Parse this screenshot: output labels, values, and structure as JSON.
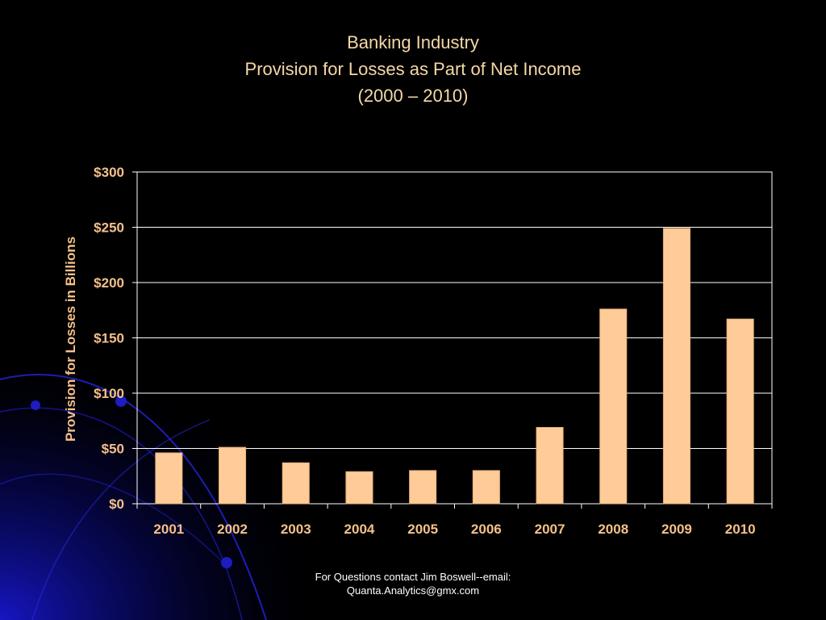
{
  "slide": {
    "title_lines": [
      "Banking Industry",
      "Provision for Losses as Part of Net Income",
      "(2000 – 2010)"
    ],
    "footer_lines": [
      "For Questions contact Jim Boswell--email:",
      "Quanta.Analytics@gmx.com"
    ]
  },
  "colors": {
    "background": "#000000",
    "bar": "#FFCC99",
    "bar_stroke": "#E8B07A",
    "title": "#F5D9A6",
    "axis_label": "#F5C08A",
    "gridline": "#FFFFFF",
    "deco": "#1A1AE6"
  },
  "chart_data": {
    "type": "bar",
    "title": "",
    "xlabel": "",
    "ylabel": "Provision for Losses in Billions",
    "categories": [
      "2001",
      "2002",
      "2003",
      "2004",
      "2005",
      "2006",
      "2007",
      "2008",
      "2009",
      "2010"
    ],
    "values": [
      46,
      51,
      37,
      29,
      30,
      30,
      69,
      176,
      249,
      167
    ],
    "ylim": [
      0,
      300
    ],
    "yticks": [
      0,
      50,
      100,
      150,
      200,
      250,
      300
    ],
    "ytick_labels": [
      "$0",
      "$50",
      "$100",
      "$150",
      "$200",
      "$250",
      "$300"
    ],
    "grid": true,
    "legend": "none"
  }
}
